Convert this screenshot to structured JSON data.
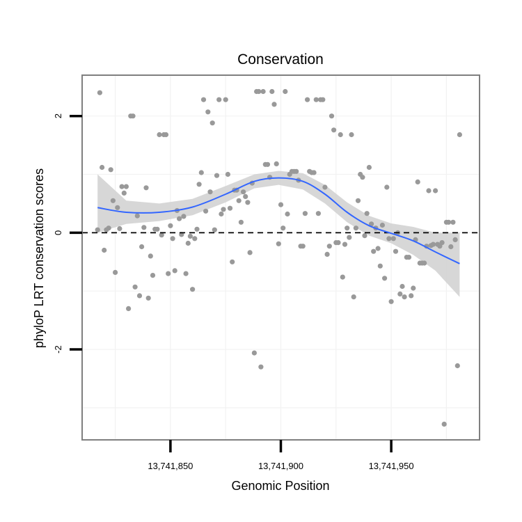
{
  "chart_data": {
    "type": "scatter",
    "title": "Conservation",
    "xlabel": "Genomic Position",
    "ylabel": "phyloP LRT conservation scores",
    "xlim": [
      13741810,
      13741990
    ],
    "ylim": [
      -3.55,
      2.7
    ],
    "x_ticks": [
      13741850,
      13741900,
      13741950
    ],
    "x_tick_labels": [
      "13,741,850",
      "13,741,900",
      "13,741,950"
    ],
    "y_ticks": [
      -2,
      0,
      2
    ],
    "y_tick_labels": [
      "-2",
      "0",
      "2"
    ],
    "reference_line": {
      "y": 0,
      "style": "dashed"
    },
    "grid": true,
    "colors": {
      "points": "#999999",
      "smooth": "#3366FF",
      "ribbon": "#D3D3D3",
      "refline": "#000000",
      "border": "#7F7F7F",
      "grid": "#F2F2F2"
    },
    "smooth": {
      "x": [
        13741817,
        13741830,
        13741845,
        13741860,
        13741875,
        13741888,
        13741899,
        13741910,
        13741920,
        13741930,
        13741940,
        13741950,
        13741960,
        13741970,
        13741981
      ],
      "y": [
        0.43,
        0.35,
        0.35,
        0.44,
        0.66,
        0.88,
        0.94,
        0.88,
        0.66,
        0.35,
        0.12,
        -0.01,
        -0.14,
        -0.33,
        -0.53
      ],
      "lower": [
        0.0,
        0.15,
        0.2,
        0.3,
        0.52,
        0.76,
        0.82,
        0.74,
        0.5,
        0.18,
        -0.05,
        -0.18,
        -0.38,
        -0.65,
        -1.1
      ],
      "upper": [
        1.0,
        0.55,
        0.5,
        0.58,
        0.8,
        1.0,
        1.06,
        1.02,
        0.82,
        0.52,
        0.29,
        0.16,
        0.1,
        0.0,
        0.0
      ]
    },
    "points": [
      {
        "x": 13741818,
        "y": 2.4
      },
      {
        "x": 13741817,
        "y": 0.05
      },
      {
        "x": 13741819,
        "y": 1.12
      },
      {
        "x": 13741820,
        "y": -0.3
      },
      {
        "x": 13741821,
        "y": 0.05
      },
      {
        "x": 13741822,
        "y": 0.08
      },
      {
        "x": 13741823,
        "y": 1.08
      },
      {
        "x": 13741824,
        "y": 0.55
      },
      {
        "x": 13741825,
        "y": -0.68
      },
      {
        "x": 13741826,
        "y": 0.43
      },
      {
        "x": 13741827,
        "y": 0.07
      },
      {
        "x": 13741828,
        "y": 0.79
      },
      {
        "x": 13741829,
        "y": 0.68
      },
      {
        "x": 13741830,
        "y": 0.79
      },
      {
        "x": 13741831,
        "y": -1.3
      },
      {
        "x": 13741832,
        "y": 2.0
      },
      {
        "x": 13741833,
        "y": 2.0
      },
      {
        "x": 13741834,
        "y": -0.93
      },
      {
        "x": 13741835,
        "y": 0.29
      },
      {
        "x": 13741836,
        "y": -1.08
      },
      {
        "x": 13741837,
        "y": -0.24
      },
      {
        "x": 13741838,
        "y": 0.09
      },
      {
        "x": 13741839,
        "y": 0.77
      },
      {
        "x": 13741840,
        "y": -1.12
      },
      {
        "x": 13741841,
        "y": -0.4
      },
      {
        "x": 13741842,
        "y": -0.73
      },
      {
        "x": 13741843,
        "y": 0.06
      },
      {
        "x": 13741844,
        "y": 0.06
      },
      {
        "x": 13741845,
        "y": 1.68
      },
      {
        "x": 13741846,
        "y": -0.04
      },
      {
        "x": 13741847,
        "y": 1.68
      },
      {
        "x": 13741848,
        "y": 1.68
      },
      {
        "x": 13741849,
        "y": -0.7
      },
      {
        "x": 13741850,
        "y": 0.12
      },
      {
        "x": 13741851,
        "y": -0.1
      },
      {
        "x": 13741852,
        "y": -0.65
      },
      {
        "x": 13741853,
        "y": 0.38
      },
      {
        "x": 13741854,
        "y": 0.24
      },
      {
        "x": 13741855,
        "y": -0.03
      },
      {
        "x": 13741856,
        "y": 0.28
      },
      {
        "x": 13741857,
        "y": -0.7
      },
      {
        "x": 13741858,
        "y": -0.18
      },
      {
        "x": 13741859,
        "y": -0.06
      },
      {
        "x": 13741860,
        "y": -0.97
      },
      {
        "x": 13741861,
        "y": -0.1
      },
      {
        "x": 13741862,
        "y": 0.06
      },
      {
        "x": 13741863,
        "y": 0.83
      },
      {
        "x": 13741864,
        "y": 1.03
      },
      {
        "x": 13741865,
        "y": 2.28
      },
      {
        "x": 13741866,
        "y": 0.37
      },
      {
        "x": 13741867,
        "y": 2.07
      },
      {
        "x": 13741868,
        "y": 0.7
      },
      {
        "x": 13741869,
        "y": 1.88
      },
      {
        "x": 13741870,
        "y": 0.05
      },
      {
        "x": 13741871,
        "y": 0.98
      },
      {
        "x": 13741872,
        "y": 2.28
      },
      {
        "x": 13741873,
        "y": 0.32
      },
      {
        "x": 13741874,
        "y": 0.4
      },
      {
        "x": 13741875,
        "y": 2.28
      },
      {
        "x": 13741876,
        "y": 1.0
      },
      {
        "x": 13741877,
        "y": 0.42
      },
      {
        "x": 13741878,
        "y": -0.5
      },
      {
        "x": 13741879,
        "y": 0.73
      },
      {
        "x": 13741880,
        "y": 0.73
      },
      {
        "x": 13741881,
        "y": 0.55
      },
      {
        "x": 13741882,
        "y": 0.18
      },
      {
        "x": 13741883,
        "y": 0.7
      },
      {
        "x": 13741884,
        "y": 0.62
      },
      {
        "x": 13741885,
        "y": 0.52
      },
      {
        "x": 13741886,
        "y": -0.34
      },
      {
        "x": 13741887,
        "y": 0.85
      },
      {
        "x": 13741888,
        "y": -2.06
      },
      {
        "x": 13741889,
        "y": 2.42
      },
      {
        "x": 13741890,
        "y": 2.42
      },
      {
        "x": 13741891,
        "y": -2.3
      },
      {
        "x": 13741892,
        "y": 2.42
      },
      {
        "x": 13741893,
        "y": 1.17
      },
      {
        "x": 13741894,
        "y": 1.17
      },
      {
        "x": 13741895,
        "y": 0.95
      },
      {
        "x": 13741896,
        "y": 2.42
      },
      {
        "x": 13741897,
        "y": 2.2
      },
      {
        "x": 13741898,
        "y": 1.18
      },
      {
        "x": 13741899,
        "y": -0.19
      },
      {
        "x": 13741900,
        "y": 0.48
      },
      {
        "x": 13741901,
        "y": 0.08
      },
      {
        "x": 13741902,
        "y": 2.42
      },
      {
        "x": 13741903,
        "y": 0.32
      },
      {
        "x": 13741904,
        "y": 1.0
      },
      {
        "x": 13741905,
        "y": 1.05
      },
      {
        "x": 13741906,
        "y": 1.05
      },
      {
        "x": 13741907,
        "y": 1.05
      },
      {
        "x": 13741908,
        "y": 0.9
      },
      {
        "x": 13741909,
        "y": -0.23
      },
      {
        "x": 13741910,
        "y": -0.23
      },
      {
        "x": 13741911,
        "y": 0.33
      },
      {
        "x": 13741912,
        "y": 2.28
      },
      {
        "x": 13741913,
        "y": 1.05
      },
      {
        "x": 13741914,
        "y": 1.03
      },
      {
        "x": 13741915,
        "y": 1.03
      },
      {
        "x": 13741916,
        "y": 2.28
      },
      {
        "x": 13741917,
        "y": 0.33
      },
      {
        "x": 13741918,
        "y": 2.28
      },
      {
        "x": 13741919,
        "y": 2.28
      },
      {
        "x": 13741920,
        "y": 0.78
      },
      {
        "x": 13741921,
        "y": -0.37
      },
      {
        "x": 13741922,
        "y": -0.23
      },
      {
        "x": 13741923,
        "y": 2.0
      },
      {
        "x": 13741924,
        "y": 1.76
      },
      {
        "x": 13741925,
        "y": -0.17
      },
      {
        "x": 13741926,
        "y": -0.17
      },
      {
        "x": 13741927,
        "y": 1.68
      },
      {
        "x": 13741928,
        "y": -0.76
      },
      {
        "x": 13741929,
        "y": -0.2
      },
      {
        "x": 13741930,
        "y": 0.08
      },
      {
        "x": 13741931,
        "y": -0.08
      },
      {
        "x": 13741932,
        "y": 1.68
      },
      {
        "x": 13741933,
        "y": -1.1
      },
      {
        "x": 13741934,
        "y": 0.08
      },
      {
        "x": 13741935,
        "y": 0.55
      },
      {
        "x": 13741936,
        "y": 1.0
      },
      {
        "x": 13741937,
        "y": 0.95
      },
      {
        "x": 13741938,
        "y": -0.05
      },
      {
        "x": 13741939,
        "y": 0.33
      },
      {
        "x": 13741940,
        "y": 1.12
      },
      {
        "x": 13741941,
        "y": 0.15
      },
      {
        "x": 13741942,
        "y": -0.32
      },
      {
        "x": 13741943,
        "y": 0.08
      },
      {
        "x": 13741944,
        "y": -0.27
      },
      {
        "x": 13741945,
        "y": -0.57
      },
      {
        "x": 13741946,
        "y": 0.13
      },
      {
        "x": 13741947,
        "y": -0.78
      },
      {
        "x": 13741948,
        "y": 0.78
      },
      {
        "x": 13741949,
        "y": -0.1
      },
      {
        "x": 13741950,
        "y": -1.18
      },
      {
        "x": 13741951,
        "y": -0.1
      },
      {
        "x": 13741952,
        "y": -0.32
      },
      {
        "x": 13741953,
        "y": 0.0
      },
      {
        "x": 13741954,
        "y": -1.05
      },
      {
        "x": 13741955,
        "y": -0.92
      },
      {
        "x": 13741956,
        "y": -1.1
      },
      {
        "x": 13741957,
        "y": -0.42
      },
      {
        "x": 13741958,
        "y": -0.42
      },
      {
        "x": 13741959,
        "y": -1.08
      },
      {
        "x": 13741960,
        "y": -0.95
      },
      {
        "x": 13741961,
        "y": -0.12
      },
      {
        "x": 13741962,
        "y": 0.87
      },
      {
        "x": 13741963,
        "y": -0.52
      },
      {
        "x": 13741964,
        "y": -0.52
      },
      {
        "x": 13741965,
        "y": -0.52
      },
      {
        "x": 13741966,
        "y": -0.23
      },
      {
        "x": 13741967,
        "y": 0.72
      },
      {
        "x": 13741968,
        "y": -0.22
      },
      {
        "x": 13741969,
        "y": -0.2
      },
      {
        "x": 13741970,
        "y": 0.72
      },
      {
        "x": 13741971,
        "y": -0.2
      },
      {
        "x": 13741972,
        "y": -0.23
      },
      {
        "x": 13741973,
        "y": -0.17
      },
      {
        "x": 13741974,
        "y": -3.28
      },
      {
        "x": 13741975,
        "y": 0.18
      },
      {
        "x": 13741976,
        "y": 0.18
      },
      {
        "x": 13741977,
        "y": -0.24
      },
      {
        "x": 13741978,
        "y": 0.18
      },
      {
        "x": 13741979,
        "y": -0.12
      },
      {
        "x": 13741980,
        "y": -2.28
      },
      {
        "x": 13741981,
        "y": 1.68
      }
    ]
  }
}
